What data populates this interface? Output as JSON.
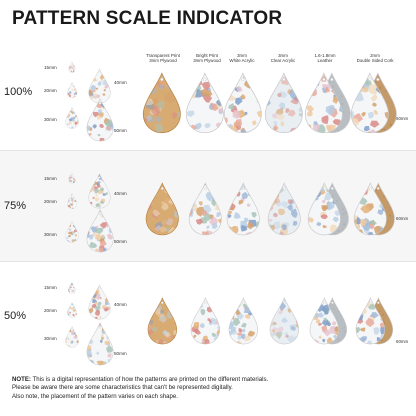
{
  "title": "PATTERN SCALE INDICATOR",
  "colors": {
    "background": "#ffffff",
    "band": "#f6f6f6",
    "wood": "#d8ab73",
    "wood_dark": "#b8823f",
    "leather": "#b9bec3",
    "cork": "#c59a69",
    "acrylic_white": "#f4f6f8",
    "acrylic_clear": "#e9eef2"
  },
  "materials": [
    {
      "line1": "Transparent Print",
      "line2": "3mm Plywood"
    },
    {
      "line1": "Bright Print",
      "line2": "3mm Plywood"
    },
    {
      "line1": "3mm",
      "line2": "White Acrylic"
    },
    {
      "line1": "3mm",
      "line2": "Clear Acrylic"
    },
    {
      "line1": "1.6-1.8mm",
      "line2": "Leather"
    },
    {
      "line1": "2mm",
      "line2": "Double Sided Cork"
    }
  ],
  "scales": [
    {
      "percent": "100%",
      "sizes": {
        "s15": "15mm",
        "s20": "20mm",
        "s30": "30mm",
        "s40": "40mm",
        "s50": "50mm"
      },
      "large_size": "60mm"
    },
    {
      "percent": "75%",
      "sizes": {
        "s15": "15mm",
        "s20": "20mm",
        "s30": "30mm",
        "s40": "40mm",
        "s50": "50mm"
      },
      "large_size": "60mm"
    },
    {
      "percent": "50%",
      "sizes": {
        "s15": "15mm",
        "s20": "20mm",
        "s30": "30mm",
        "s40": "40mm",
        "s50": "50mm"
      },
      "large_size": "60mm"
    }
  ],
  "note": {
    "label": "NOTE:",
    "line1": "This is a digital representation of how the patterns are printed on the different materials.",
    "line2": "Please be aware there are some characteristics that can't be represented digitally.",
    "line3": "Also note, the placement of the pattern varies on each shape."
  }
}
